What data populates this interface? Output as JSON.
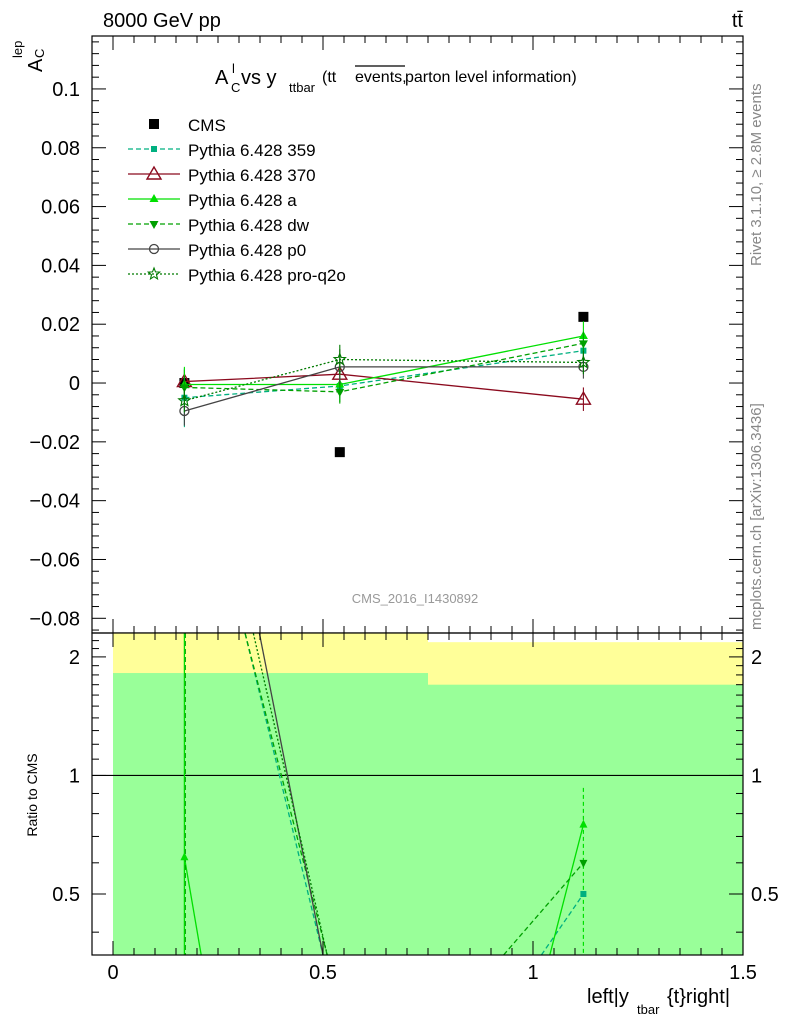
{
  "header": {
    "energy_label": "8000 GeV pp",
    "process_label": "tt̄"
  },
  "side_labels": {
    "rivet": "Rivet 3.1.10, ≥ 2.8M events",
    "mcplots": "mcplots.cern.ch [arXiv:1306.3436]"
  },
  "analysis_id": "CMS_2016_I1430892",
  "colors": {
    "CMS": "#000000",
    "Pythia 6.428 359": "#00b080",
    "Pythia 6.428 370": "#8b0a1e",
    "Pythia 6.428 a": "#00e000",
    "Pythia 6.428 dw": "#00a000",
    "Pythia 6.428 p0": "#444444",
    "Pythia 6.428 pro-q2o": "#007a00",
    "band_inner": "#99ff99",
    "band_outer": "#ffff99"
  },
  "chart_data": [
    {
      "type": "scatter",
      "title": "A_C^l vs y_ttbar (tt̄events, parton level information)",
      "title_parts": {
        "main": "A",
        "sub": "C",
        "sup": "l",
        "vs": " vs y",
        "vs_sub": "ttbar",
        "paren_open": " (tt",
        "overline": "events,",
        "tail": " parton level information)"
      },
      "ylabel": "A_C^lep",
      "ylabel_parts": {
        "main": "A",
        "sub": "C",
        "sup": "lep"
      },
      "xlim": [
        -0.05,
        1.5
      ],
      "ylim": [
        -0.085,
        0.118
      ],
      "yticks": [
        -0.08,
        -0.06,
        -0.04,
        -0.02,
        0,
        0.02,
        0.04,
        0.06,
        0.08,
        0.1
      ],
      "ytick_labels": [
        "−0.08",
        "−0.06",
        "−0.04",
        "−0.02",
        "0",
        "0.02",
        "0.04",
        "0.06",
        "0.08",
        "0.1"
      ],
      "x": [
        0.17,
        0.54,
        1.12
      ],
      "series": [
        {
          "name": "CMS",
          "marker": "square",
          "values": [
            0.0,
            -0.0235,
            0.0225
          ]
        },
        {
          "name": "Pythia 6.428 359",
          "marker": "small-square",
          "dash": "dashed",
          "values": [
            -0.005,
            -0.001,
            0.011
          ],
          "errors": [
            0.01,
            0.004,
            0.004
          ]
        },
        {
          "name": "Pythia 6.428 370",
          "marker": "open-triangle",
          "dash": "solid",
          "values": [
            0.0005,
            0.003,
            -0.0055
          ],
          "errors": [
            0.004,
            0.004,
            0.004
          ]
        },
        {
          "name": "Pythia 6.428 a",
          "marker": "triangle",
          "dash": "solid",
          "values": [
            -0.0005,
            -0.0005,
            0.016
          ],
          "errors": [
            0.006,
            0.006,
            0.005
          ]
        },
        {
          "name": "Pythia 6.428 dw",
          "marker": "inverted-triangle",
          "dash": "dashed",
          "values": [
            -0.0015,
            -0.003,
            0.0135
          ],
          "errors": [
            0.004,
            0.004,
            0.004
          ]
        },
        {
          "name": "Pythia 6.428 p0",
          "marker": "open-circle",
          "dash": "solid",
          "values": [
            -0.0095,
            0.0055,
            0.0055
          ],
          "errors": [
            0.005,
            0.006,
            0.004
          ]
        },
        {
          "name": "Pythia 6.428 pro-q2o",
          "marker": "star",
          "dash": "dotted",
          "values": [
            -0.006,
            0.008,
            0.007
          ],
          "errors": [
            0.004,
            0.005,
            0.004
          ]
        }
      ],
      "legend": "top-left"
    },
    {
      "type": "line",
      "ylabel": "Ratio to CMS",
      "xlabel": "left|y_tbar{t}right|",
      "xlabel_parts": {
        "pre": "left|y",
        "sub": "tbar",
        "post": "{t}right|"
      },
      "xlim": [
        -0.05,
        1.5
      ],
      "ylim": [
        0.35,
        2.3
      ],
      "xticks": [
        0,
        0.5,
        1,
        1.5
      ],
      "xtick_labels": [
        "0",
        "0.5",
        "1",
        "1.5"
      ],
      "yticks": [
        0.5,
        1,
        2
      ],
      "ytick_labels": [
        "0.5",
        "1",
        "2"
      ],
      "reference_line": 1,
      "bands": [
        {
          "xmin": 0,
          "xmax": 0.75,
          "inner": [
            0.35,
            1.82
          ],
          "outer": [
            0.35,
            2.35
          ]
        },
        {
          "xmin": 0.75,
          "xmax": 1.5,
          "inner": [
            0.35,
            1.7
          ],
          "outer": [
            0.35,
            2.18
          ]
        }
      ],
      "series": [
        {
          "name": "Pythia 6.428 359",
          "dash": "dashed",
          "points": [
            [
              0.31,
              2.4
            ],
            [
              0.5,
              0.35
            ]
          ],
          "points2": [
            [
              1.02,
              0.35
            ],
            [
              1.12,
              0.5
            ]
          ]
        },
        {
          "name": "Pythia 6.428 a",
          "dash": "solid",
          "points": [
            [
              0.17,
              0.62
            ],
            [
              0.21,
              0.35
            ]
          ],
          "points2": [
            [
              1.04,
              0.35
            ],
            [
              1.12,
              0.75
            ]
          ]
        },
        {
          "name": "Pythia 6.428 dw",
          "dash": "dashed",
          "points": [
            [
              0.31,
              2.4
            ],
            [
              0.51,
              0.35
            ]
          ],
          "points2": [
            [
              0.93,
              0.35
            ],
            [
              1.12,
              0.6
            ]
          ]
        },
        {
          "name": "Pythia 6.428 p0",
          "dash": "solid",
          "points": [
            [
              0.345,
              2.4
            ],
            [
              0.5,
              0.35
            ]
          ]
        },
        {
          "name": "Pythia 6.428 pro-q2o",
          "dash": "dotted",
          "points": [
            [
              0.33,
              2.4
            ],
            [
              0.51,
              0.35
            ]
          ]
        }
      ]
    }
  ]
}
